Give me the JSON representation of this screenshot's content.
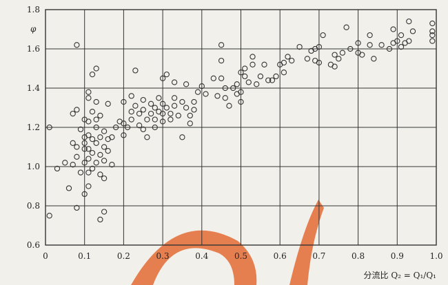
{
  "chart_data": {
    "type": "scatter",
    "title": "",
    "xlabel": "分流比 Q₂ = Q₁/Q₁",
    "ylabel": "φ",
    "xlim": [
      0,
      1.0
    ],
    "ylim": [
      0.6,
      1.8
    ],
    "grid": true,
    "x_ticks": [
      "0",
      "0.1",
      "0.2",
      "0.3",
      "0.4",
      "0.5",
      "0.6",
      "0.7",
      "0.8",
      "0.9",
      "1.0"
    ],
    "y_ticks": [
      "0.6",
      "0.8",
      "1.0",
      "1.2",
      "1.4",
      "1.6",
      "1.8"
    ],
    "x_tick_values": [
      0,
      0.1,
      0.2,
      0.3,
      0.4,
      0.5,
      0.6,
      0.7,
      0.8,
      0.9,
      1.0
    ],
    "y_tick_values": [
      0.6,
      0.8,
      1.0,
      1.2,
      1.4,
      1.6,
      1.8
    ],
    "marker": "open-circle",
    "colors": {
      "marker": "#333333",
      "grid": "#333333",
      "background": "#f2f0ea"
    },
    "series": [
      {
        "points": [
          [
            0.01,
            1.2
          ],
          [
            0.01,
            0.75
          ],
          [
            0.03,
            0.99
          ],
          [
            0.05,
            1.02
          ],
          [
            0.06,
            0.89
          ],
          [
            0.07,
            1.12
          ],
          [
            0.07,
            1.01
          ],
          [
            0.07,
            1.27
          ],
          [
            0.08,
            1.62
          ],
          [
            0.08,
            1.29
          ],
          [
            0.08,
            1.1
          ],
          [
            0.08,
            1.05
          ],
          [
            0.08,
            0.79
          ],
          [
            0.09,
            1.19
          ],
          [
            0.09,
            0.97
          ],
          [
            0.1,
            1.24
          ],
          [
            0.1,
            1.15
          ],
          [
            0.1,
            1.12
          ],
          [
            0.1,
            1.09
          ],
          [
            0.1,
            1.02
          ],
          [
            0.1,
            0.86
          ],
          [
            0.11,
            1.38
          ],
          [
            0.11,
            1.35
          ],
          [
            0.11,
            1.23
          ],
          [
            0.11,
            1.16
          ],
          [
            0.11,
            1.09
          ],
          [
            0.11,
            1.04
          ],
          [
            0.11,
            0.97
          ],
          [
            0.11,
            0.9
          ],
          [
            0.12,
            1.47
          ],
          [
            0.12,
            1.28
          ],
          [
            0.12,
            1.14
          ],
          [
            0.12,
            1.07
          ],
          [
            0.12,
            0.99
          ],
          [
            0.13,
            1.5
          ],
          [
            0.13,
            1.33
          ],
          [
            0.13,
            1.24
          ],
          [
            0.13,
            1.2
          ],
          [
            0.13,
            1.12
          ],
          [
            0.13,
            1.02
          ],
          [
            0.14,
            1.26
          ],
          [
            0.14,
            1.15
          ],
          [
            0.14,
            1.06
          ],
          [
            0.14,
            0.96
          ],
          [
            0.14,
            0.73
          ],
          [
            0.15,
            1.18
          ],
          [
            0.15,
            1.1
          ],
          [
            0.15,
            1.03
          ],
          [
            0.15,
            0.94
          ],
          [
            0.15,
            0.77
          ],
          [
            0.16,
            1.32
          ],
          [
            0.16,
            1.14
          ],
          [
            0.16,
            1.08
          ],
          [
            0.17,
            1.15
          ],
          [
            0.17,
            1.01
          ],
          [
            0.18,
            1.2
          ],
          [
            0.19,
            1.23
          ],
          [
            0.2,
            1.33
          ],
          [
            0.2,
            1.22
          ],
          [
            0.2,
            1.16
          ],
          [
            0.21,
            1.2
          ],
          [
            0.22,
            1.28
          ],
          [
            0.22,
            1.24
          ],
          [
            0.22,
            1.36
          ],
          [
            0.23,
            1.49
          ],
          [
            0.23,
            1.31
          ],
          [
            0.24,
            1.27
          ],
          [
            0.24,
            1.21
          ],
          [
            0.25,
            1.34
          ],
          [
            0.25,
            1.29
          ],
          [
            0.25,
            1.19
          ],
          [
            0.26,
            1.24
          ],
          [
            0.26,
            1.15
          ],
          [
            0.27,
            1.32
          ],
          [
            0.27,
            1.27
          ],
          [
            0.28,
            1.3
          ],
          [
            0.28,
            1.24
          ],
          [
            0.28,
            1.2
          ],
          [
            0.29,
            1.35
          ],
          [
            0.29,
            1.28
          ],
          [
            0.3,
            1.45
          ],
          [
            0.3,
            1.32
          ],
          [
            0.3,
            1.27
          ],
          [
            0.3,
            1.23
          ],
          [
            0.31,
            1.47
          ],
          [
            0.31,
            1.3
          ],
          [
            0.32,
            1.27
          ],
          [
            0.32,
            1.24
          ],
          [
            0.33,
            1.43
          ],
          [
            0.33,
            1.35
          ],
          [
            0.33,
            1.31
          ],
          [
            0.34,
            1.26
          ],
          [
            0.35,
            1.33
          ],
          [
            0.35,
            1.15
          ],
          [
            0.36,
            1.42
          ],
          [
            0.36,
            1.3
          ],
          [
            0.37,
            1.26
          ],
          [
            0.37,
            1.22
          ],
          [
            0.38,
            1.33
          ],
          [
            0.38,
            1.29
          ],
          [
            0.39,
            1.38
          ],
          [
            0.4,
            1.41
          ],
          [
            0.41,
            1.37
          ],
          [
            0.43,
            1.45
          ],
          [
            0.44,
            1.36
          ],
          [
            0.45,
            1.62
          ],
          [
            0.45,
            1.54
          ],
          [
            0.45,
            1.45
          ],
          [
            0.46,
            1.4
          ],
          [
            0.46,
            1.35
          ],
          [
            0.47,
            1.31
          ],
          [
            0.48,
            1.4
          ],
          [
            0.49,
            1.42
          ],
          [
            0.49,
            1.37
          ],
          [
            0.5,
            1.48
          ],
          [
            0.5,
            1.38
          ],
          [
            0.5,
            1.33
          ],
          [
            0.51,
            1.5
          ],
          [
            0.51,
            1.46
          ],
          [
            0.52,
            1.43
          ],
          [
            0.53,
            1.56
          ],
          [
            0.53,
            1.52
          ],
          [
            0.54,
            1.42
          ],
          [
            0.55,
            1.46
          ],
          [
            0.56,
            1.52
          ],
          [
            0.57,
            1.44
          ],
          [
            0.58,
            1.44
          ],
          [
            0.59,
            1.46
          ],
          [
            0.6,
            1.52
          ],
          [
            0.61,
            1.53
          ],
          [
            0.61,
            1.48
          ],
          [
            0.62,
            1.56
          ],
          [
            0.63,
            1.54
          ],
          [
            0.65,
            1.61
          ],
          [
            0.67,
            1.55
          ],
          [
            0.68,
            1.59
          ],
          [
            0.69,
            1.6
          ],
          [
            0.69,
            1.54
          ],
          [
            0.7,
            1.61
          ],
          [
            0.7,
            1.53
          ],
          [
            0.71,
            1.67
          ],
          [
            0.73,
            1.52
          ],
          [
            0.74,
            1.57
          ],
          [
            0.74,
            1.51
          ],
          [
            0.75,
            1.55
          ],
          [
            0.76,
            1.58
          ],
          [
            0.77,
            1.71
          ],
          [
            0.78,
            1.6
          ],
          [
            0.8,
            1.63
          ],
          [
            0.8,
            1.58
          ],
          [
            0.81,
            1.57
          ],
          [
            0.83,
            1.67
          ],
          [
            0.83,
            1.62
          ],
          [
            0.84,
            1.55
          ],
          [
            0.86,
            1.62
          ],
          [
            0.88,
            1.6
          ],
          [
            0.89,
            1.7
          ],
          [
            0.89,
            1.63
          ],
          [
            0.9,
            1.64
          ],
          [
            0.91,
            1.61
          ],
          [
            0.91,
            1.67
          ],
          [
            0.92,
            1.63
          ],
          [
            0.93,
            1.74
          ],
          [
            0.93,
            1.64
          ],
          [
            0.94,
            1.69
          ],
          [
            0.99,
            1.73
          ],
          [
            0.99,
            1.69
          ],
          [
            0.99,
            1.67
          ],
          [
            0.99,
            1.64
          ]
        ]
      }
    ]
  },
  "watermark_color": "#e46b35"
}
